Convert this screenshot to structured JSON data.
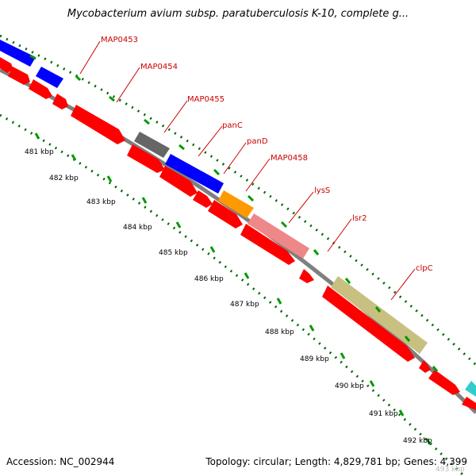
{
  "title": "Mycobacterium avium subsp. paratuberculosis K-10, complete g...",
  "footer": {
    "accession": "Accession: NC_002944",
    "summary": "Topology: circular; Length: 4,829,781 bp; Genes: 4,399"
  },
  "colors": {
    "cds": "#ff0000",
    "label": "#cc0000",
    "backbone": "#7f7f7f",
    "tick_dotted": "#006600",
    "tick_major": "#009900",
    "gene_blue": "#0000ff",
    "gene_gray": "#666666",
    "gene_orange": "#ff9900",
    "gene_pink": "#ee8888",
    "gene_khaki": "#c8c080",
    "gene_cyan": "#33cccc"
  },
  "kbp_ticks": [
    "481 kbp",
    "482 kbp",
    "483 kbp",
    "484 kbp",
    "485 kbp",
    "486 kbp",
    "487 kbp",
    "488 kbp",
    "489 kbp",
    "490 kbp",
    "491 kbp",
    "492 kbp",
    "493 kbp"
  ],
  "gene_labels": [
    "MAP0453",
    "MAP0454",
    "MAP0455",
    "panC",
    "panD",
    "MAP0458",
    "lysS",
    "lsr2",
    "clpC"
  ]
}
